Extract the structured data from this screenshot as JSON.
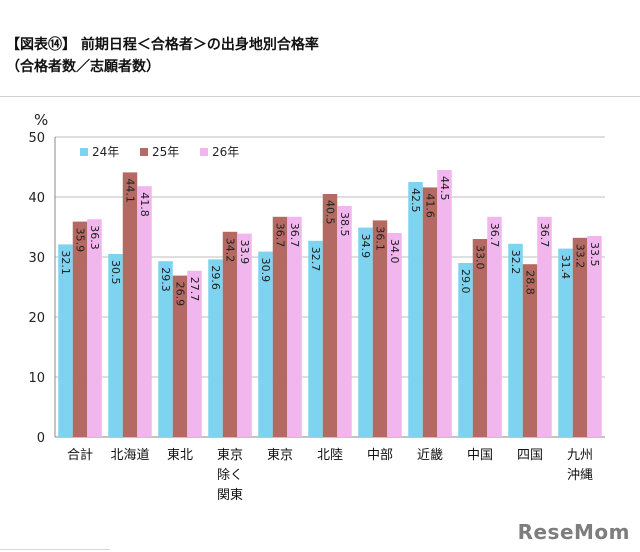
{
  "header": {
    "title": "【図表⑭】 前期日程＜合格者＞の出身地別合格率",
    "subtitle": "（合格者数／志願者数）"
  },
  "logo": {
    "text": "ReseMom"
  },
  "colors": {
    "s24": "#7dd3f0",
    "s25": "#b46a62",
    "s26": "#f2b6ee",
    "grid": "#bfbfbf"
  },
  "chart_data": {
    "type": "bar",
    "unit_label": "%",
    "ylim": [
      0,
      50
    ],
    "yticks": [
      0,
      10,
      20,
      30,
      40,
      50
    ],
    "grid": true,
    "legend_position": "top-left",
    "categories": [
      "合計",
      "北海道",
      "東北",
      "東京除く関東",
      "東京",
      "北陸",
      "中部",
      "近畿",
      "中国",
      "四国",
      "九州沖縄"
    ],
    "category_lines": [
      [
        "合計"
      ],
      [
        "北海道"
      ],
      [
        "東北"
      ],
      [
        "東京",
        "除く",
        "関東"
      ],
      [
        "東京"
      ],
      [
        "北陸"
      ],
      [
        "中部"
      ],
      [
        "近畿"
      ],
      [
        "中国"
      ],
      [
        "四国"
      ],
      [
        "九州",
        "沖縄"
      ]
    ],
    "series": [
      {
        "name": "24年",
        "values": [
          32.1,
          30.5,
          29.3,
          29.6,
          30.9,
          32.7,
          34.9,
          42.5,
          29.0,
          32.2,
          31.4
        ]
      },
      {
        "name": "25年",
        "values": [
          35.9,
          44.1,
          26.9,
          34.2,
          36.7,
          40.5,
          36.1,
          41.6,
          33.0,
          28.8,
          33.2
        ]
      },
      {
        "name": "26年",
        "values": [
          36.3,
          41.8,
          27.7,
          33.9,
          36.7,
          38.5,
          34.0,
          44.5,
          36.7,
          36.7,
          33.5
        ]
      }
    ]
  }
}
